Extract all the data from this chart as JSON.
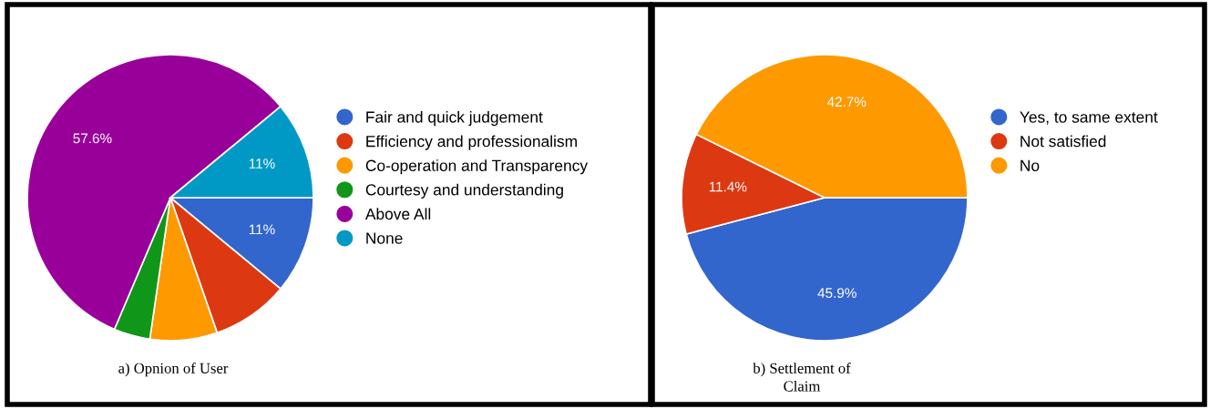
{
  "chart_data": [
    {
      "type": "pie",
      "title": "a) Opnion of User",
      "categories": [
        "Fair and quick judgement",
        "Efficiency and professionalism",
        "Co-operation and Transparency",
        "Courtesy and understanding",
        "Above All",
        "None"
      ],
      "values": [
        11,
        8.7,
        7.6,
        4.1,
        57.6,
        11
      ],
      "colors": [
        "#3366cc",
        "#dc3912",
        "#ff9900",
        "#109618",
        "#990099",
        "#0099c6"
      ],
      "value_labels": [
        "11%",
        null,
        null,
        null,
        "57.6%",
        "11%"
      ],
      "legend": "right"
    },
    {
      "type": "pie",
      "title": "b) Settlement of\nClaim",
      "categories": [
        "Yes, to same extent",
        "Not satisfied",
        "No"
      ],
      "values": [
        45.9,
        11.4,
        42.7
      ],
      "colors": [
        "#3366cc",
        "#dc3912",
        "#ff9900"
      ],
      "value_labels": [
        "45.9%",
        "11.4%",
        "42.7%"
      ],
      "legend": "right"
    }
  ]
}
